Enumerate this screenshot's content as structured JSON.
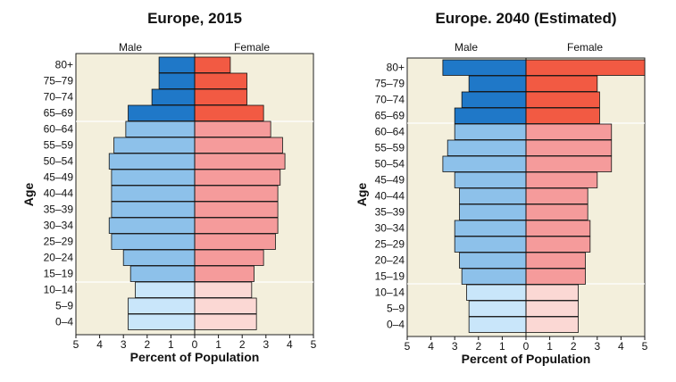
{
  "chart_data": [
    {
      "type": "bar",
      "orientation": "horizontal",
      "title": "Europe, 2015",
      "xlabel": "Percent of Population",
      "ylabel": "Age",
      "male_label": "Male",
      "female_label": "Female",
      "xlim": [
        -5,
        5
      ],
      "xticks": [
        "5",
        "4",
        "3",
        "2",
        "1",
        "0",
        "1",
        "2",
        "3",
        "4",
        "5"
      ],
      "categories": [
        "80+",
        "75–79",
        "70–74",
        "65–69",
        "60–64",
        "55–59",
        "50–54",
        "45–49",
        "40–44",
        "35–39",
        "30–34",
        "25–29",
        "20–24",
        "15–19",
        "10–14",
        "5–9",
        "0–4"
      ],
      "series": [
        {
          "name": "Male",
          "values": [
            1.5,
            1.5,
            1.8,
            2.8,
            2.9,
            3.4,
            3.6,
            3.5,
            3.5,
            3.5,
            3.6,
            3.5,
            3.0,
            2.7,
            2.5,
            2.8,
            2.8
          ]
        },
        {
          "name": "Female",
          "values": [
            1.5,
            2.2,
            2.2,
            2.9,
            3.2,
            3.7,
            3.8,
            3.6,
            3.5,
            3.5,
            3.5,
            3.4,
            2.9,
            2.5,
            2.4,
            2.6,
            2.6
          ]
        }
      ],
      "colors": {
        "male": [
          "#1f78c8",
          "#8dc1ea",
          "#c9e6fa"
        ],
        "female": [
          "#f25a43",
          "#f59b9b",
          "#fbd8d4"
        ]
      }
    },
    {
      "type": "bar",
      "orientation": "horizontal",
      "title": "Europe. 2040 (Estimated)",
      "xlabel": "Percent of Population",
      "ylabel": "Age",
      "male_label": "Male",
      "female_label": "Female",
      "xlim": [
        -5,
        5
      ],
      "xticks": [
        "5",
        "4",
        "3",
        "2",
        "1",
        "0",
        "1",
        "2",
        "3",
        "4",
        "5"
      ],
      "categories": [
        "80+",
        "75–79",
        "70–74",
        "65–69",
        "60–64",
        "55–59",
        "50–54",
        "45–49",
        "40–44",
        "35–39",
        "30–34",
        "25–29",
        "20–24",
        "15–19",
        "10–14",
        "5–9",
        "0–4"
      ],
      "series": [
        {
          "name": "Male",
          "values": [
            3.5,
            2.4,
            2.7,
            3.0,
            3.0,
            3.3,
            3.5,
            3.0,
            2.8,
            2.8,
            3.0,
            3.0,
            2.8,
            2.7,
            2.5,
            2.4,
            2.4
          ]
        },
        {
          "name": "Female",
          "values": [
            5.0,
            3.0,
            3.1,
            3.1,
            3.6,
            3.6,
            3.6,
            3.0,
            2.6,
            2.6,
            2.7,
            2.7,
            2.5,
            2.5,
            2.2,
            2.2,
            2.2
          ]
        }
      ],
      "colors": {
        "male": [
          "#1f78c8",
          "#8dc1ea",
          "#c9e6fa"
        ],
        "female": [
          "#f25a43",
          "#f59b9b",
          "#fbd8d4"
        ]
      }
    }
  ]
}
